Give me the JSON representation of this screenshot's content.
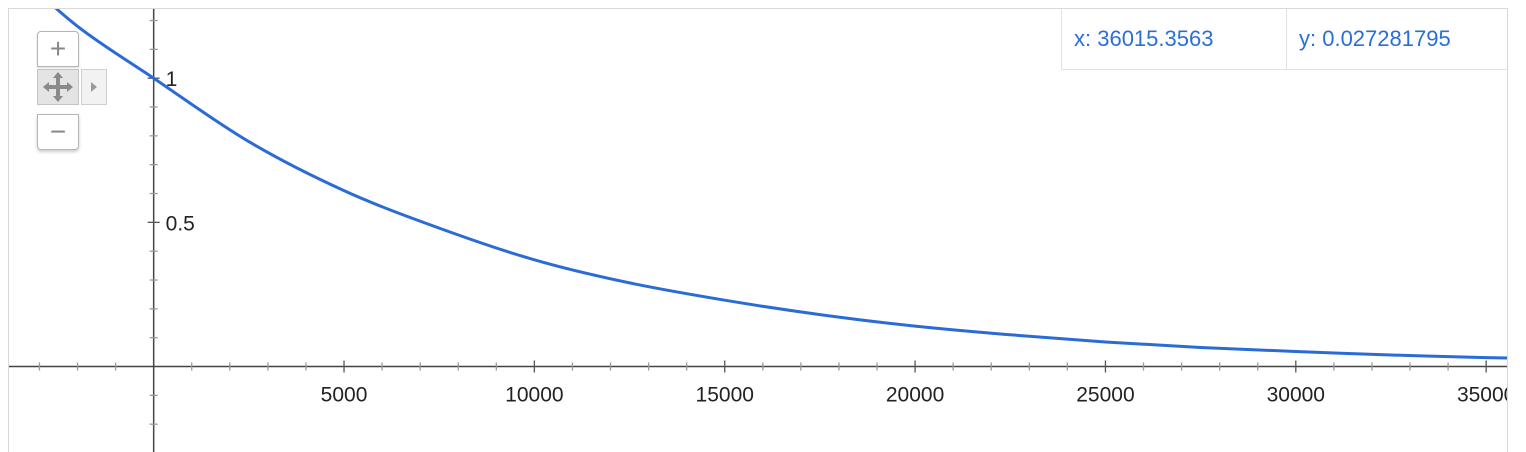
{
  "chart_data": {
    "type": "line",
    "title": "",
    "xlabel": "",
    "ylabel": "",
    "xlim": [
      -3800,
      35600
    ],
    "ylim": [
      -0.3,
      1.24
    ],
    "x_ticks": [
      5000,
      10000,
      15000,
      20000,
      25000,
      30000,
      35000
    ],
    "x_tick_labels": [
      "5000",
      "10000",
      "15000",
      "20000",
      "25000",
      "30000",
      "35000"
    ],
    "y_ticks": [
      1,
      0.5
    ],
    "y_tick_labels": [
      "1",
      "0.5"
    ],
    "grid": false,
    "series": [
      {
        "color": "#2b6bd6",
        "x": [
          -3800,
          -2000,
          0,
          2500,
          5000,
          7500,
          10000,
          12500,
          15000,
          17500,
          20000,
          22500,
          25000,
          27500,
          30000,
          32500,
          35000,
          35600
        ],
        "y": [
          1.39,
          1.18,
          1.0,
          0.78,
          0.61,
          0.48,
          0.37,
          0.29,
          0.23,
          0.18,
          0.14,
          0.11,
          0.085,
          0.066,
          0.052,
          0.04,
          0.031,
          0.029
        ]
      }
    ]
  },
  "readout": {
    "x_text": "x: 36015.3563",
    "y_text": "y: 0.027281795"
  },
  "controls": {
    "zoom_in": "+",
    "zoom_out": "−"
  }
}
